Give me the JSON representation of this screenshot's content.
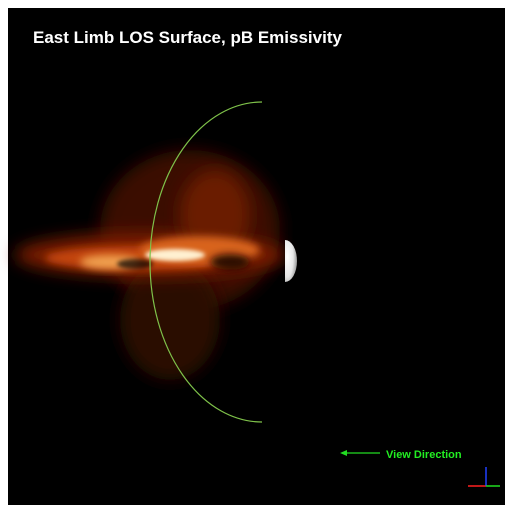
{
  "title": "East Limb LOS Surface, pB Emissivity",
  "annotation": "View Direction"
}
